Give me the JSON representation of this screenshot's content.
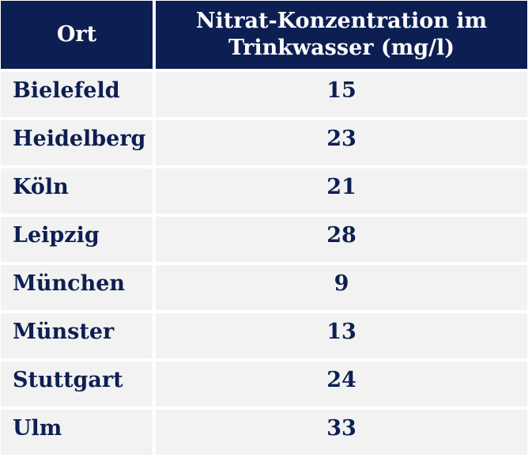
{
  "table": {
    "headers": [
      "Ort",
      "Nitrat-Konzentration im Trinkwasser (mg/l)"
    ],
    "header_bg": "#0d1f52",
    "cell_bg": "#f2f2f2",
    "text_color": "#0d1f52"
  },
  "chart_data": {
    "type": "table",
    "columns": [
      "Ort",
      "Nitrat-Konzentration im Trinkwasser (mg/l)"
    ],
    "rows": [
      [
        "Bielefeld",
        "15"
      ],
      [
        "Heidelberg",
        "23"
      ],
      [
        "Köln",
        "21"
      ],
      [
        "Leipzig",
        "28"
      ],
      [
        "München",
        "9"
      ],
      [
        "Münster",
        "13"
      ],
      [
        "Stuttgart",
        "24"
      ],
      [
        "Ulm",
        "33"
      ]
    ]
  }
}
